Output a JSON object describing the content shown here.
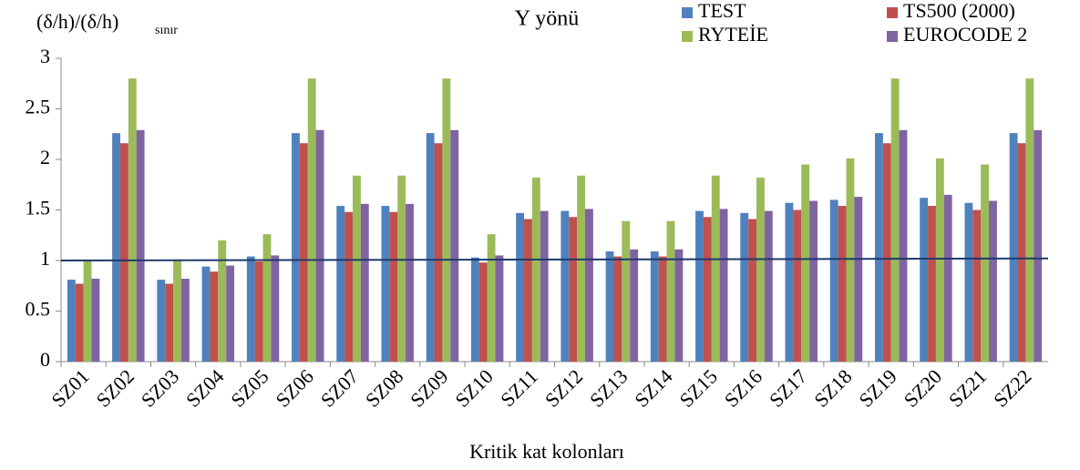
{
  "chart_data": {
    "type": "bar",
    "title": "Y yönü",
    "y_label": "(δ/h)/(δ/h)",
    "y_label_subscript": "sınır",
    "x_label": "Kritik kat kolonları",
    "categories": [
      "SZ01",
      "SZ02",
      "SZ03",
      "SZ04",
      "SZ05",
      "SZ06",
      "SZ07",
      "SZ08",
      "SZ09",
      "SZ10",
      "SZ11",
      "SZ12",
      "SZ13",
      "SZ14",
      "SZ15",
      "SZ16",
      "SZ17",
      "SZ18",
      "SZ19",
      "SZ20",
      "SZ21",
      "SZ22"
    ],
    "series": [
      {
        "name": "TEST",
        "color": "#4f81bd",
        "values": [
          0.81,
          2.26,
          0.81,
          0.94,
          1.04,
          2.26,
          1.54,
          1.54,
          2.26,
          1.03,
          1.47,
          1.49,
          1.09,
          1.09,
          1.49,
          1.47,
          1.57,
          1.6,
          2.26,
          1.62,
          1.57,
          2.26
        ]
      },
      {
        "name": "TS500 (2000)",
        "color": "#c0504d",
        "values": [
          0.77,
          2.16,
          0.77,
          0.89,
          0.99,
          2.16,
          1.48,
          1.48,
          2.16,
          0.98,
          1.41,
          1.43,
          1.04,
          1.04,
          1.43,
          1.41,
          1.5,
          1.54,
          2.16,
          1.54,
          1.5,
          2.16
        ]
      },
      {
        "name": "RYTEİE",
        "color": "#9bbb59",
        "values": [
          1.01,
          2.8,
          1.01,
          1.2,
          1.26,
          2.8,
          1.84,
          1.84,
          2.8,
          1.26,
          1.82,
          1.84,
          1.39,
          1.39,
          1.84,
          1.82,
          1.95,
          2.01,
          2.8,
          2.01,
          1.95,
          2.8
        ]
      },
      {
        "name": "EUROCODE 2",
        "color": "#8064a2",
        "values": [
          0.82,
          2.29,
          0.82,
          0.95,
          1.05,
          2.29,
          1.56,
          1.56,
          2.29,
          1.05,
          1.49,
          1.51,
          1.11,
          1.11,
          1.51,
          1.49,
          1.59,
          1.63,
          2.29,
          1.65,
          1.59,
          2.29
        ]
      }
    ],
    "reference_line": {
      "color": "#1f3a6e",
      "values": [
        1.0,
        1.02
      ]
    },
    "ylim": [
      0,
      3
    ],
    "yticks": [
      0,
      0.5,
      1,
      1.5,
      2,
      2.5,
      3
    ],
    "legend": "top-right"
  }
}
